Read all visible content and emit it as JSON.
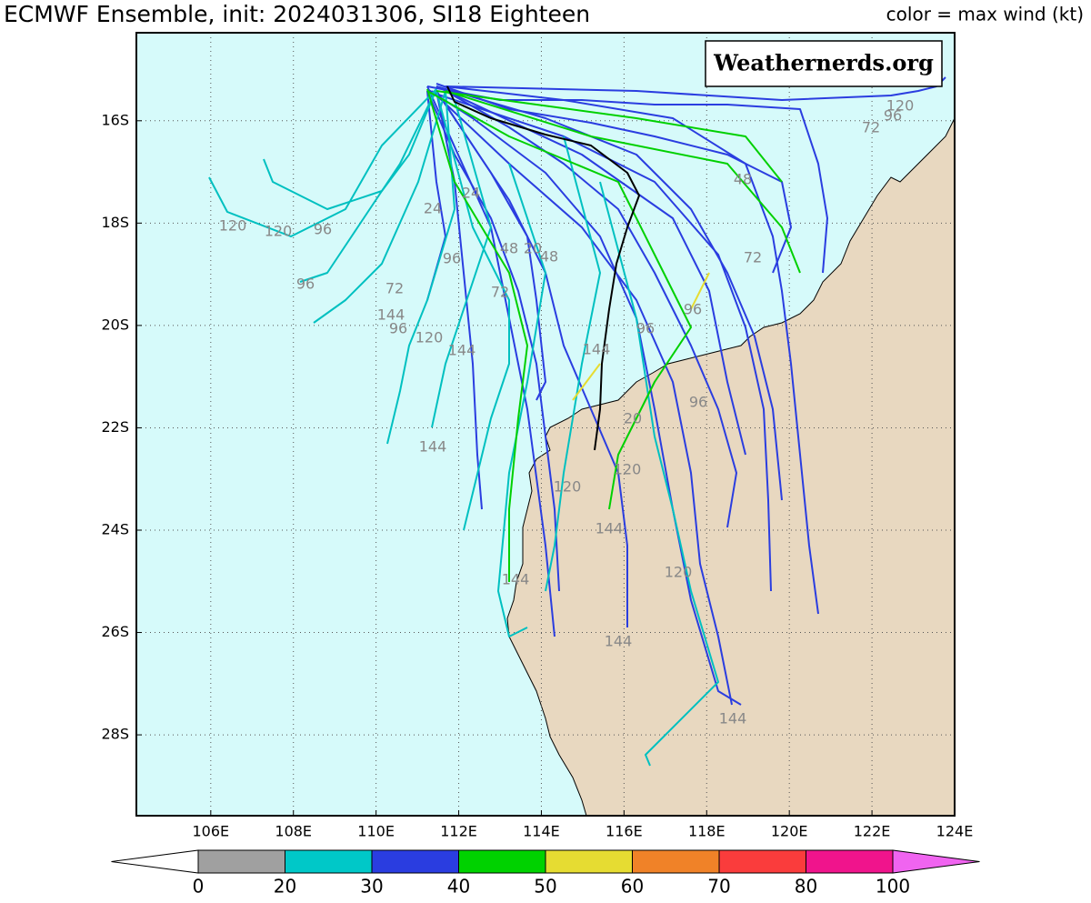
{
  "header": {
    "title": "ECMWF Ensemble, init: 2024031306, SI18 Eighteen",
    "color_note": "color = max wind (kt)"
  },
  "watermark": "Weathernerds.org",
  "map": {
    "lon_range": [
      104.2,
      124
    ],
    "lat_range": [
      14.28,
      29.58
    ],
    "lon_ticks": [
      {
        "value": 106,
        "label": "106E"
      },
      {
        "value": 108,
        "label": "108E"
      },
      {
        "value": 110,
        "label": "110E"
      },
      {
        "value": 112,
        "label": "112E"
      },
      {
        "value": 114,
        "label": "114E"
      },
      {
        "value": 116,
        "label": "116E"
      },
      {
        "value": 118,
        "label": "118E"
      },
      {
        "value": 120,
        "label": "120E"
      },
      {
        "value": 122,
        "label": "122E"
      },
      {
        "value": 124,
        "label": "124E"
      }
    ],
    "lat_ticks": [
      {
        "value": 16,
        "label": "16S"
      },
      {
        "value": 18,
        "label": "18S"
      },
      {
        "value": 20,
        "label": "20S"
      },
      {
        "value": 22,
        "label": "22S"
      },
      {
        "value": 24,
        "label": "24S"
      },
      {
        "value": 26,
        "label": "26S"
      },
      {
        "value": 28,
        "label": "28S"
      }
    ],
    "grid": true,
    "track_labels": [
      "120",
      "120",
      "96",
      "96",
      "72",
      "144",
      "96",
      "120",
      "144",
      "144",
      "120",
      "144",
      "144",
      "120",
      "144",
      "144",
      "96",
      "20",
      "120",
      "96",
      "72",
      "48",
      "20",
      "48",
      "24",
      "24",
      "96",
      "72",
      "96",
      "120",
      "72",
      "48",
      "144",
      "96"
    ]
  },
  "colorbar": {
    "ticks": [
      0,
      20,
      30,
      40,
      50,
      60,
      70,
      80,
      100
    ],
    "colors": [
      "#ffffff",
      "#a0a0a0",
      "#00c8c8",
      "#2a3de0",
      "#00d200",
      "#e6dc32",
      "#f08228",
      "#fa3c3c",
      "#f0148c",
      "#f064f0"
    ]
  }
}
